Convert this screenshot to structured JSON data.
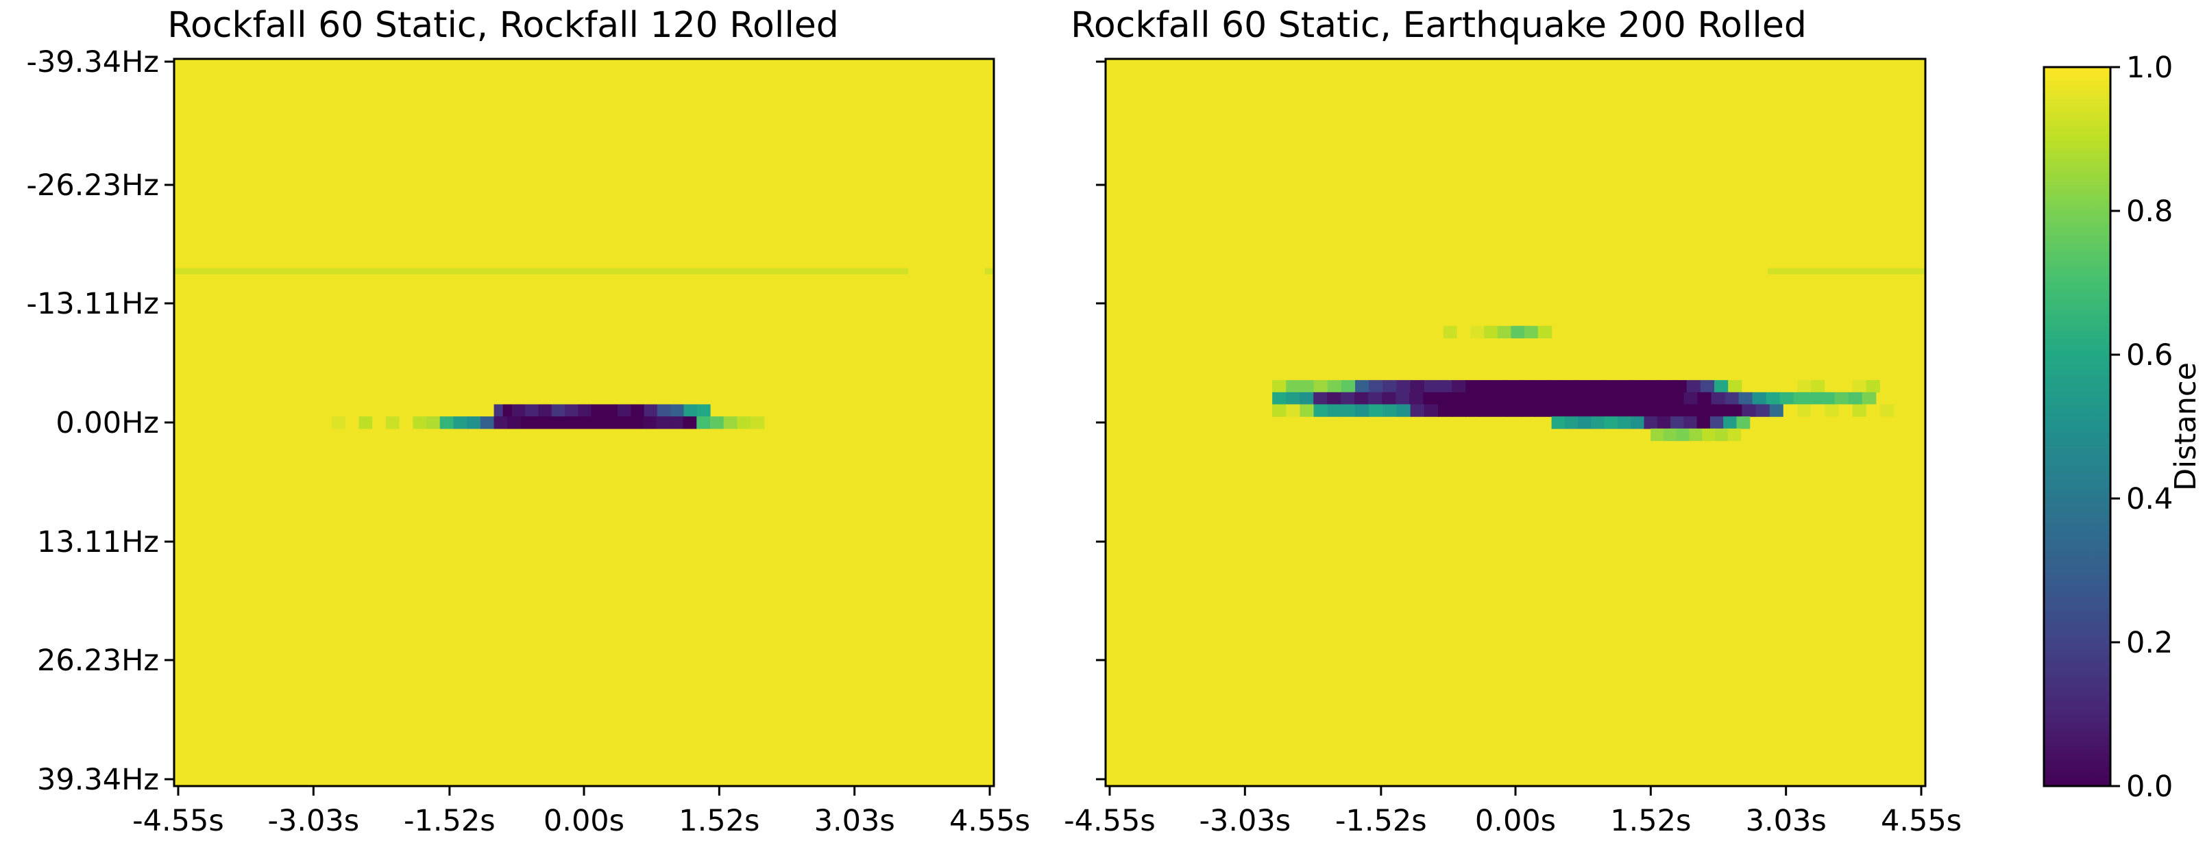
{
  "chart_data": [
    {
      "type": "heatmap",
      "title": "Rockfall 60 Static, Rockfall 120 Rolled",
      "x_ticks": [
        "-4.55s",
        "-3.03s",
        "-1.52s",
        "0.00s",
        "1.52s",
        "3.03s",
        "4.55s"
      ],
      "y_ticks": [
        "-39.34Hz",
        "-26.23Hz",
        "-13.11Hz",
        "0.00Hz",
        "13.11Hz",
        "26.23Hz",
        "39.34Hz"
      ],
      "xlim": [
        -4.55,
        4.55
      ],
      "ylim": [
        -39.34,
        39.34
      ],
      "background_value": 0.98,
      "cell_time_width_s": 0.152,
      "cell_freq_height_hz": 1.31,
      "bands": [
        {
          "t": [
            -4.55,
            3.6
          ],
          "f": [
            -16.4,
            -16.4
          ],
          "v": 0.93
        },
        {
          "t": [
            4.45,
            4.55
          ],
          "f": [
            -16.4,
            -16.4
          ],
          "v": 0.93
        }
      ],
      "runs": [
        {
          "f": -1.31,
          "t": [
            -1.0,
            -0.8
          ],
          "vals": [
            0.15,
            0.0
          ]
        },
        {
          "f": -1.31,
          "t": [
            -0.8,
            1.4
          ],
          "vals": [
            0.05,
            0.1,
            0.05,
            0.15,
            0.1,
            0.05,
            0.0,
            0.0,
            0.05,
            0.0,
            0.1,
            0.25,
            0.3,
            0.55,
            0.6
          ]
        },
        {
          "f": 0.0,
          "t": [
            -2.8,
            -1.6
          ],
          "vals": [
            0.95,
            0.98,
            0.9,
            0.98,
            0.92,
            0.98,
            0.9,
            0.88
          ]
        },
        {
          "f": 0.0,
          "t": [
            -1.6,
            2.0
          ],
          "vals": [
            0.65,
            0.55,
            0.5,
            0.3,
            0.05,
            0.02,
            0.0,
            0.0,
            0.0,
            0.0,
            0.0,
            0.0,
            0.0,
            0.0,
            0.0,
            0.02,
            0.05,
            0.05,
            0.0,
            0.7,
            0.75,
            0.85,
            0.9,
            0.92
          ]
        }
      ]
    },
    {
      "type": "heatmap",
      "title": "Rockfall 60 Static, Earthquake 200 Rolled",
      "x_ticks": [
        "-4.55s",
        "-3.03s",
        "-1.52s",
        "0.00s",
        "1.52s",
        "3.03s",
        "4.55s"
      ],
      "y_ticks": [
        "",
        "",
        "",
        "",
        "",
        "",
        ""
      ],
      "xlim": [
        -4.55,
        4.55
      ],
      "ylim": [
        -39.34,
        39.34
      ],
      "background_value": 0.98,
      "cell_time_width_s": 0.152,
      "cell_freq_height_hz": 1.31,
      "bands": [
        {
          "t": [
            2.8,
            4.55
          ],
          "f": [
            -16.4,
            -16.4
          ],
          "v": 0.93
        }
      ],
      "runs": [
        {
          "f": -9.8,
          "t": [
            -0.8,
            0.4
          ],
          "vals": [
            0.92,
            0.98,
            0.95,
            0.9,
            0.85,
            0.75,
            0.8,
            0.9
          ]
        },
        {
          "f": -3.93,
          "t": [
            -2.7,
            4.2
          ],
          "vals": [
            0.9,
            0.8,
            0.8,
            0.85,
            0.8,
            0.75,
            0.3,
            0.2,
            0.15,
            0.1,
            0.05,
            0.1,
            0.1,
            0.05,
            0.0,
            0.0,
            0.0,
            0.0,
            0.0,
            0.0,
            0.0,
            0.0,
            0.0,
            0.0,
            0.0,
            0.0,
            0.0,
            0.0,
            0.0,
            0.0,
            0.1,
            0.2,
            0.6,
            0.9,
            0.98,
            0.98,
            0.98,
            0.98,
            0.95,
            0.92,
            0.98,
            0.98,
            0.95,
            0.9,
            0.98
          ]
        },
        {
          "f": -2.62,
          "t": [
            -2.7,
            4.0
          ],
          "vals": [
            0.6,
            0.55,
            0.5,
            0.1,
            0.05,
            0.1,
            0.05,
            0.1,
            0.05,
            0.1,
            0.05,
            0.0,
            0.0,
            0.0,
            0.0,
            0.0,
            0.0,
            0.0,
            0.0,
            0.0,
            0.0,
            0.0,
            0.0,
            0.0,
            0.0,
            0.0,
            0.0,
            0.0,
            0.0,
            0.0,
            0.05,
            0.0,
            0.1,
            0.15,
            0.3,
            0.5,
            0.6,
            0.65,
            0.7,
            0.7,
            0.7,
            0.75,
            0.72,
            0.8
          ]
        },
        {
          "f": -1.31,
          "t": [
            -2.7,
            4.2
          ],
          "vals": [
            0.9,
            0.95,
            0.85,
            0.6,
            0.55,
            0.55,
            0.5,
            0.6,
            0.55,
            0.5,
            0.1,
            0.05,
            0.0,
            0.0,
            0.0,
            0.0,
            0.0,
            0.0,
            0.0,
            0.0,
            0.0,
            0.0,
            0.0,
            0.0,
            0.0,
            0.0,
            0.0,
            0.0,
            0.0,
            0.0,
            0.0,
            0.0,
            0.0,
            0.0,
            0.1,
            0.15,
            0.35,
            0.98,
            0.95,
            0.98,
            0.95,
            0.98,
            0.92,
            0.98,
            0.95
          ]
        },
        {
          "f": 0.0,
          "t": [
            0.4,
            2.6
          ],
          "vals": [
            0.6,
            0.55,
            0.5,
            0.55,
            0.6,
            0.55,
            0.5,
            0.1,
            0.05,
            0.15,
            0.1,
            0.0,
            0.2,
            0.55,
            0.75
          ]
        },
        {
          "f": 1.31,
          "t": [
            1.5,
            2.5
          ],
          "vals": [
            0.85,
            0.82,
            0.8,
            0.85,
            0.9,
            0.88,
            0.92
          ]
        }
      ]
    }
  ],
  "colorbar": {
    "label": "Distance",
    "range": [
      0.0,
      1.0
    ],
    "ticks": [
      "0.0",
      "0.2",
      "0.4",
      "0.6",
      "0.8",
      "1.0"
    ],
    "colormap": "viridis"
  }
}
